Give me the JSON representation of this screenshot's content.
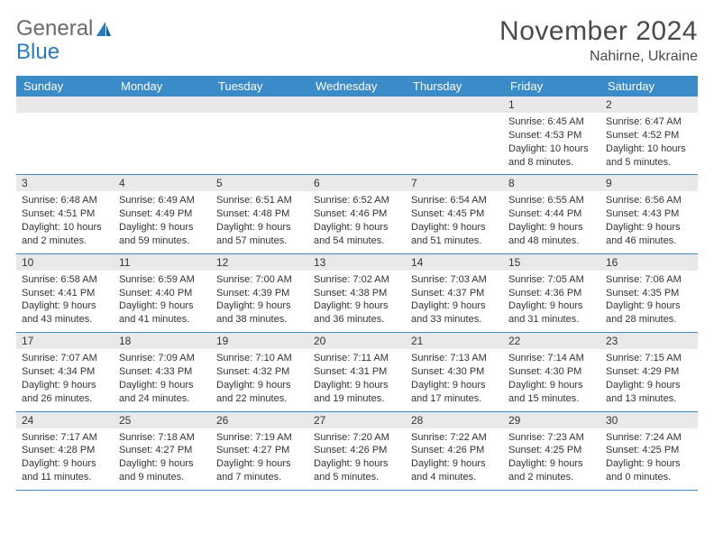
{
  "brand": {
    "word1": "General",
    "word2": "Blue"
  },
  "title": "November 2024",
  "location": "Nahirne, Ukraine",
  "colors": {
    "header_bg": "#3b8bc9",
    "header_text": "#ffffff",
    "daynum_bg": "#e9e9e9",
    "border": "#3b8bc9",
    "brand_gray": "#6a6a6a",
    "brand_blue": "#2a7ac0",
    "title_color": "#4a4a4a",
    "text_color": "#333333",
    "background": "#ffffff"
  },
  "dayNames": [
    "Sunday",
    "Monday",
    "Tuesday",
    "Wednesday",
    "Thursday",
    "Friday",
    "Saturday"
  ],
  "weeks": [
    [
      {
        "day": "",
        "sunrise": "",
        "sunset": "",
        "daylight": ""
      },
      {
        "day": "",
        "sunrise": "",
        "sunset": "",
        "daylight": ""
      },
      {
        "day": "",
        "sunrise": "",
        "sunset": "",
        "daylight": ""
      },
      {
        "day": "",
        "sunrise": "",
        "sunset": "",
        "daylight": ""
      },
      {
        "day": "",
        "sunrise": "",
        "sunset": "",
        "daylight": ""
      },
      {
        "day": "1",
        "sunrise": "Sunrise: 6:45 AM",
        "sunset": "Sunset: 4:53 PM",
        "daylight": "Daylight: 10 hours and 8 minutes."
      },
      {
        "day": "2",
        "sunrise": "Sunrise: 6:47 AM",
        "sunset": "Sunset: 4:52 PM",
        "daylight": "Daylight: 10 hours and 5 minutes."
      }
    ],
    [
      {
        "day": "3",
        "sunrise": "Sunrise: 6:48 AM",
        "sunset": "Sunset: 4:51 PM",
        "daylight": "Daylight: 10 hours and 2 minutes."
      },
      {
        "day": "4",
        "sunrise": "Sunrise: 6:49 AM",
        "sunset": "Sunset: 4:49 PM",
        "daylight": "Daylight: 9 hours and 59 minutes."
      },
      {
        "day": "5",
        "sunrise": "Sunrise: 6:51 AM",
        "sunset": "Sunset: 4:48 PM",
        "daylight": "Daylight: 9 hours and 57 minutes."
      },
      {
        "day": "6",
        "sunrise": "Sunrise: 6:52 AM",
        "sunset": "Sunset: 4:46 PM",
        "daylight": "Daylight: 9 hours and 54 minutes."
      },
      {
        "day": "7",
        "sunrise": "Sunrise: 6:54 AM",
        "sunset": "Sunset: 4:45 PM",
        "daylight": "Daylight: 9 hours and 51 minutes."
      },
      {
        "day": "8",
        "sunrise": "Sunrise: 6:55 AM",
        "sunset": "Sunset: 4:44 PM",
        "daylight": "Daylight: 9 hours and 48 minutes."
      },
      {
        "day": "9",
        "sunrise": "Sunrise: 6:56 AM",
        "sunset": "Sunset: 4:43 PM",
        "daylight": "Daylight: 9 hours and 46 minutes."
      }
    ],
    [
      {
        "day": "10",
        "sunrise": "Sunrise: 6:58 AM",
        "sunset": "Sunset: 4:41 PM",
        "daylight": "Daylight: 9 hours and 43 minutes."
      },
      {
        "day": "11",
        "sunrise": "Sunrise: 6:59 AM",
        "sunset": "Sunset: 4:40 PM",
        "daylight": "Daylight: 9 hours and 41 minutes."
      },
      {
        "day": "12",
        "sunrise": "Sunrise: 7:00 AM",
        "sunset": "Sunset: 4:39 PM",
        "daylight": "Daylight: 9 hours and 38 minutes."
      },
      {
        "day": "13",
        "sunrise": "Sunrise: 7:02 AM",
        "sunset": "Sunset: 4:38 PM",
        "daylight": "Daylight: 9 hours and 36 minutes."
      },
      {
        "day": "14",
        "sunrise": "Sunrise: 7:03 AM",
        "sunset": "Sunset: 4:37 PM",
        "daylight": "Daylight: 9 hours and 33 minutes."
      },
      {
        "day": "15",
        "sunrise": "Sunrise: 7:05 AM",
        "sunset": "Sunset: 4:36 PM",
        "daylight": "Daylight: 9 hours and 31 minutes."
      },
      {
        "day": "16",
        "sunrise": "Sunrise: 7:06 AM",
        "sunset": "Sunset: 4:35 PM",
        "daylight": "Daylight: 9 hours and 28 minutes."
      }
    ],
    [
      {
        "day": "17",
        "sunrise": "Sunrise: 7:07 AM",
        "sunset": "Sunset: 4:34 PM",
        "daylight": "Daylight: 9 hours and 26 minutes."
      },
      {
        "day": "18",
        "sunrise": "Sunrise: 7:09 AM",
        "sunset": "Sunset: 4:33 PM",
        "daylight": "Daylight: 9 hours and 24 minutes."
      },
      {
        "day": "19",
        "sunrise": "Sunrise: 7:10 AM",
        "sunset": "Sunset: 4:32 PM",
        "daylight": "Daylight: 9 hours and 22 minutes."
      },
      {
        "day": "20",
        "sunrise": "Sunrise: 7:11 AM",
        "sunset": "Sunset: 4:31 PM",
        "daylight": "Daylight: 9 hours and 19 minutes."
      },
      {
        "day": "21",
        "sunrise": "Sunrise: 7:13 AM",
        "sunset": "Sunset: 4:30 PM",
        "daylight": "Daylight: 9 hours and 17 minutes."
      },
      {
        "day": "22",
        "sunrise": "Sunrise: 7:14 AM",
        "sunset": "Sunset: 4:30 PM",
        "daylight": "Daylight: 9 hours and 15 minutes."
      },
      {
        "day": "23",
        "sunrise": "Sunrise: 7:15 AM",
        "sunset": "Sunset: 4:29 PM",
        "daylight": "Daylight: 9 hours and 13 minutes."
      }
    ],
    [
      {
        "day": "24",
        "sunrise": "Sunrise: 7:17 AM",
        "sunset": "Sunset: 4:28 PM",
        "daylight": "Daylight: 9 hours and 11 minutes."
      },
      {
        "day": "25",
        "sunrise": "Sunrise: 7:18 AM",
        "sunset": "Sunset: 4:27 PM",
        "daylight": "Daylight: 9 hours and 9 minutes."
      },
      {
        "day": "26",
        "sunrise": "Sunrise: 7:19 AM",
        "sunset": "Sunset: 4:27 PM",
        "daylight": "Daylight: 9 hours and 7 minutes."
      },
      {
        "day": "27",
        "sunrise": "Sunrise: 7:20 AM",
        "sunset": "Sunset: 4:26 PM",
        "daylight": "Daylight: 9 hours and 5 minutes."
      },
      {
        "day": "28",
        "sunrise": "Sunrise: 7:22 AM",
        "sunset": "Sunset: 4:26 PM",
        "daylight": "Daylight: 9 hours and 4 minutes."
      },
      {
        "day": "29",
        "sunrise": "Sunrise: 7:23 AM",
        "sunset": "Sunset: 4:25 PM",
        "daylight": "Daylight: 9 hours and 2 minutes."
      },
      {
        "day": "30",
        "sunrise": "Sunrise: 7:24 AM",
        "sunset": "Sunset: 4:25 PM",
        "daylight": "Daylight: 9 hours and 0 minutes."
      }
    ]
  ]
}
